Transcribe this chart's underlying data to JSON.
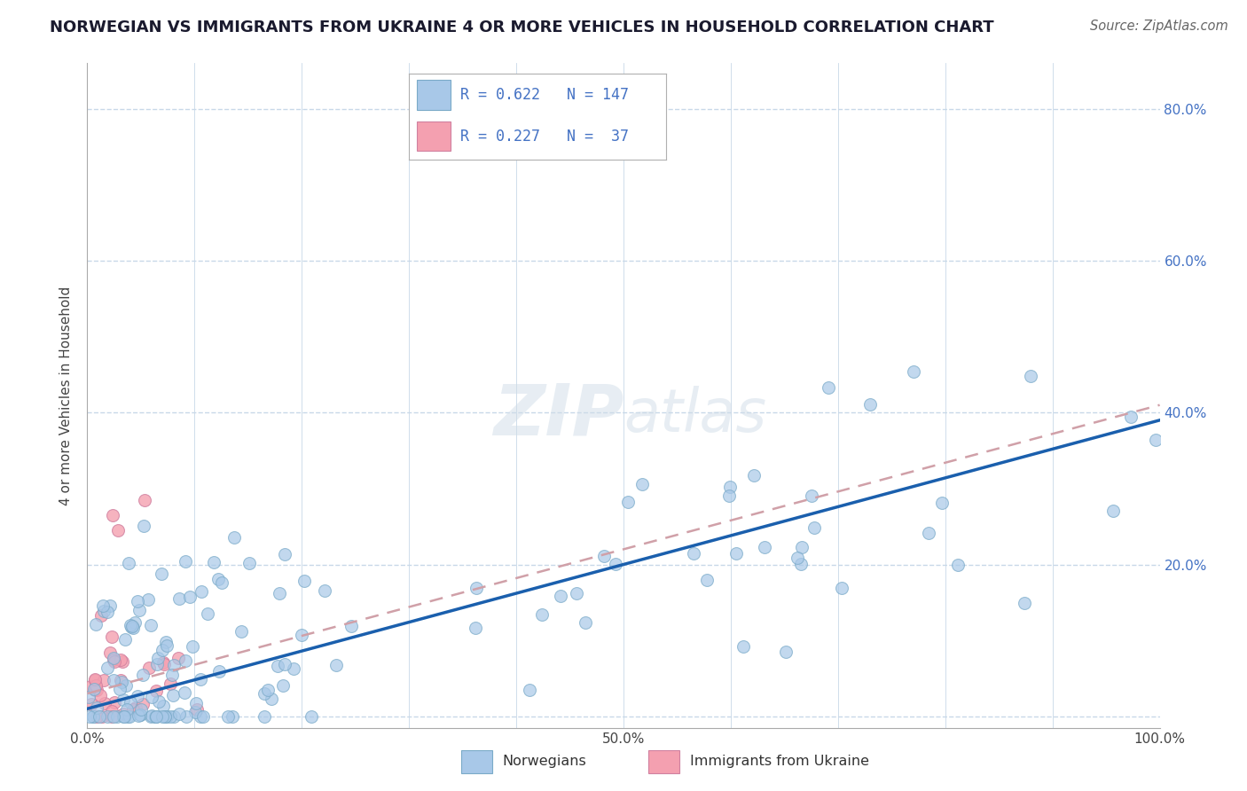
{
  "title": "NORWEGIAN VS IMMIGRANTS FROM UKRAINE 4 OR MORE VEHICLES IN HOUSEHOLD CORRELATION CHART",
  "source": "Source: ZipAtlas.com",
  "ylabel": "4 or more Vehicles in Household",
  "xlim": [
    0.0,
    1.0
  ],
  "ylim": [
    -0.015,
    0.86
  ],
  "xticks": [
    0.0,
    0.1,
    0.2,
    0.3,
    0.4,
    0.5,
    0.6,
    0.7,
    0.8,
    0.9,
    1.0
  ],
  "xticklabels": [
    "0.0%",
    "",
    "",
    "",
    "",
    "50.0%",
    "",
    "",
    "",
    "",
    "100.0%"
  ],
  "yticks": [
    0.0,
    0.2,
    0.4,
    0.6,
    0.8
  ],
  "yticklabels": [
    "",
    "20.0%",
    "40.0%",
    "60.0%",
    "80.0%"
  ],
  "norwegian_R": 0.622,
  "norwegian_N": 147,
  "ukraine_R": 0.227,
  "ukraine_N": 37,
  "norwegian_color": "#a8c8e8",
  "norway_edge_color": "#7aaac8",
  "ukraine_color": "#f4a0b0",
  "ukraine_edge_color": "#d080a0",
  "trend_norwegian_color": "#1a5fad",
  "trend_ukraine_color": "#d0a0a8",
  "legend_label_norwegian": "Norwegians",
  "legend_label_ukraine": "Immigrants from Ukraine",
  "watermark": "ZIPatlas",
  "background_color": "#ffffff",
  "grid_color": "#c8d8e8"
}
